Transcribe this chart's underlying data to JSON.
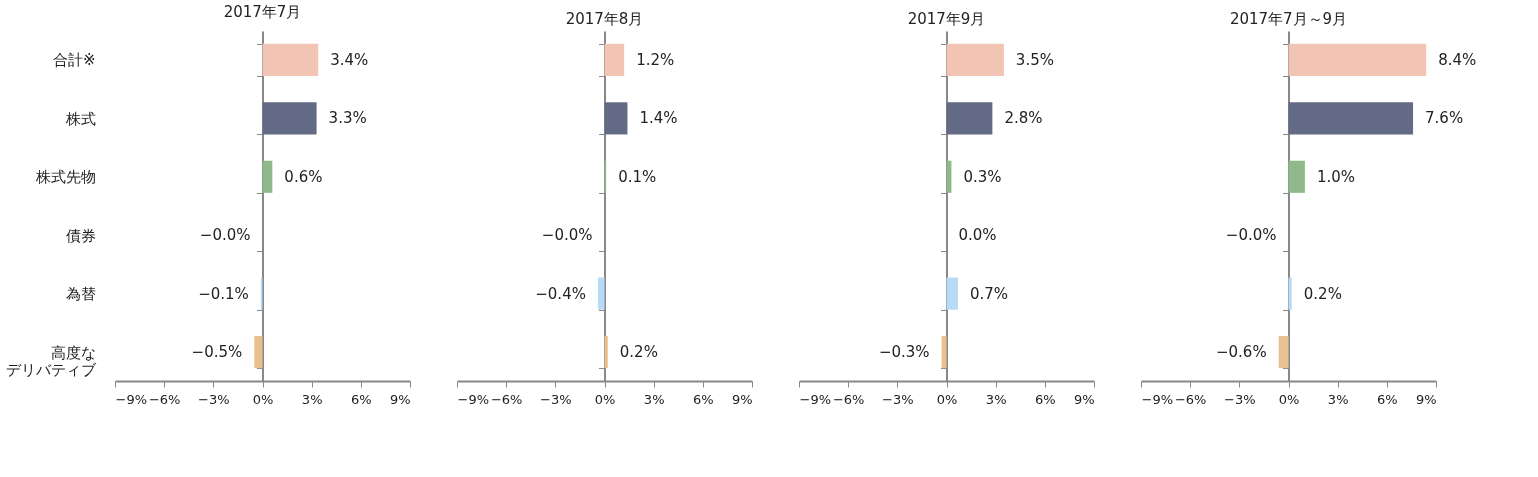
{
  "chart_data": [
    {
      "type": "bar",
      "orientation": "horizontal",
      "title": "2017年7月",
      "categories": [
        "合計※",
        "株式",
        "株式先物",
        "債券",
        "為替",
        "高度なデリバティブ"
      ],
      "values": [
        3.4,
        3.3,
        0.6,
        -0.0,
        -0.1,
        -0.5
      ],
      "value_labels": [
        "3.4%",
        "3.3%",
        "0.6%",
        "−0.0%",
        "−0.1%",
        "−0.5%"
      ],
      "colors": [
        "#f2c4b4",
        "#626a86",
        "#8fb98a",
        "#9fb0c8",
        "#b8daf6",
        "#e9c08f"
      ],
      "xlim": [
        -9,
        9
      ],
      "xticks": [
        {
          "value": -9,
          "label": "−9%"
        },
        {
          "value": -6,
          "label": "−6%"
        },
        {
          "value": -3,
          "label": "−3%"
        },
        {
          "value": 0,
          "label": "0%"
        },
        {
          "value": 3,
          "label": "3%"
        },
        {
          "value": 6,
          "label": "6%"
        },
        {
          "value": 9,
          "label": "9%"
        }
      ]
    },
    {
      "type": "bar",
      "orientation": "horizontal",
      "title": "2017年8月",
      "categories": [
        null,
        null,
        null,
        null,
        null,
        null
      ],
      "values": [
        1.2,
        1.4,
        0.1,
        -0.0,
        -0.4,
        0.2
      ],
      "value_labels": [
        "1.2%",
        "1.4%",
        "0.1%",
        "−0.0%",
        "−0.4%",
        "0.2%"
      ],
      "colors": [
        "#f2c4b4",
        "#626a86",
        "#8fb98a",
        "#9fb0c8",
        "#b8daf6",
        "#e9c08f"
      ],
      "xlim": [
        -9,
        9
      ],
      "xticks": [
        {
          "value": -9,
          "label": "−9%"
        },
        {
          "value": -6,
          "label": "−6%"
        },
        {
          "value": -3,
          "label": "−3%"
        },
        {
          "value": 0,
          "label": "0%"
        },
        {
          "value": 3,
          "label": "3%"
        },
        {
          "value": 6,
          "label": "6%"
        },
        {
          "value": 9,
          "label": "9%"
        }
      ],
      "tick_labels": "x"
    },
    {
      "type": "bar",
      "orientation": "horizontal",
      "title": "2017年9月",
      "categories": [
        null,
        null,
        null,
        null,
        null,
        null
      ],
      "values": [
        3.5,
        2.8,
        0.3,
        0.0,
        0.7,
        -0.3
      ],
      "value_labels": [
        "3.5%",
        "2.8%",
        "0.3%",
        "0.0%",
        "0.7%",
        "−0.3%"
      ],
      "colors": [
        "#f2c4b4",
        "#626a86",
        "#8fb98a",
        "#9fb0c8",
        "#b8daf6",
        "#e9c08f"
      ],
      "xlim": [
        -9,
        9
      ],
      "xticks": [
        {
          "value": -9,
          "label": "−9%"
        },
        {
          "value": -6,
          "label": "−6%"
        },
        {
          "value": -3,
          "label": "−3%"
        },
        {
          "value": 0,
          "label": "0%"
        },
        {
          "value": 3,
          "label": "3%"
        },
        {
          "value": 6,
          "label": "6%"
        },
        {
          "value": 9,
          "label": "9%"
        }
      ],
      "tick_labels": "x"
    },
    {
      "type": "bar",
      "orientation": "horizontal",
      "title": "2017年7月～9月",
      "categories": [
        null,
        null,
        null,
        null,
        null,
        null
      ],
      "values": [
        8.4,
        7.6,
        1.0,
        -0.0,
        0.2,
        -0.6
      ],
      "value_labels": [
        "8.4%",
        "7.6%",
        "1.0%",
        "−0.0%",
        "0.2%",
        "−0.6%"
      ],
      "colors": [
        "#f2c4b4",
        "#626a86",
        "#8fb98a",
        "#9fb0c8",
        "#b8daf6",
        "#e9c08f"
      ],
      "xlim": [
        -9,
        9
      ],
      "xticks": [
        {
          "value": -9,
          "label": "−9%"
        },
        {
          "value": -6,
          "label": "−6%"
        },
        {
          "value": -3,
          "label": "−3%"
        },
        {
          "value": 0,
          "label": "0%"
        },
        {
          "value": 3,
          "label": "3%"
        },
        {
          "value": 6,
          "label": "6%"
        },
        {
          "value": 9,
          "label": "9%"
        }
      ],
      "tick_labels": "x"
    }
  ]
}
